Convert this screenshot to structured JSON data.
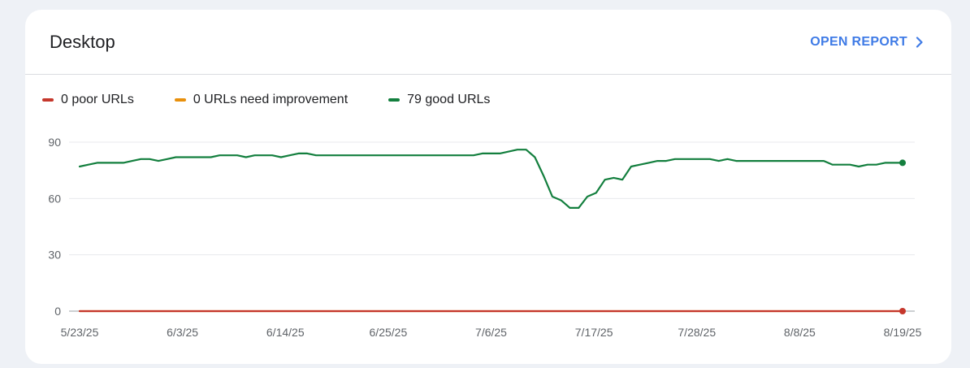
{
  "card": {
    "title": "Desktop",
    "open_report_label": "OPEN REPORT"
  },
  "legend": [
    {
      "label": "0 poor URLs",
      "color": "#c5372c"
    },
    {
      "label": "0 URLs need improvement",
      "color": "#e8900c"
    },
    {
      "label": "79 good URLs",
      "color": "#137f3e"
    }
  ],
  "chart_data": {
    "type": "line",
    "x_tick_labels": [
      "5/23/25",
      "6/3/25",
      "6/14/25",
      "6/25/25",
      "7/6/25",
      "7/17/25",
      "7/28/25",
      "8/8/25",
      "8/19/25"
    ],
    "yticks": [
      0,
      30,
      60,
      90
    ],
    "ylim": [
      0,
      90
    ],
    "x_range": [
      "5/23/25",
      "8/19/25"
    ],
    "grid": true,
    "legend_placement": "top-left",
    "series": [
      {
        "name": "poor URLs",
        "color": "#c5372c",
        "values": [
          0,
          0,
          0,
          0,
          0,
          0,
          0,
          0,
          0,
          0,
          0,
          0,
          0,
          0,
          0,
          0,
          0,
          0,
          0,
          0,
          0,
          0,
          0,
          0,
          0,
          0,
          0,
          0,
          0,
          0,
          0,
          0,
          0,
          0,
          0,
          0,
          0,
          0,
          0,
          0,
          0,
          0,
          0,
          0,
          0,
          0,
          0,
          0,
          0,
          0,
          0,
          0,
          0,
          0,
          0,
          0,
          0,
          0,
          0,
          0,
          0,
          0,
          0,
          0,
          0,
          0,
          0,
          0,
          0,
          0,
          0,
          0,
          0,
          0,
          0,
          0,
          0,
          0,
          0,
          0,
          0,
          0,
          0,
          0,
          0,
          0,
          0,
          0,
          0
        ]
      },
      {
        "name": "URLs need improvement",
        "color": "#e8900c",
        "values": [
          0,
          0,
          0,
          0,
          0,
          0,
          0,
          0,
          0,
          0,
          0,
          0,
          0,
          0,
          0,
          0,
          0,
          0,
          0,
          0,
          0,
          0,
          0,
          0,
          0,
          0,
          0,
          0,
          0,
          0,
          0,
          0,
          0,
          0,
          0,
          0,
          0,
          0,
          0,
          0,
          0,
          0,
          0,
          0,
          0,
          0,
          0,
          0,
          0,
          0,
          0,
          0,
          0,
          0,
          0,
          0,
          0,
          0,
          0,
          0,
          0,
          0,
          0,
          0,
          0,
          0,
          0,
          0,
          0,
          0,
          0,
          0,
          0,
          0,
          0,
          0,
          0,
          0,
          0,
          0,
          0,
          0,
          0,
          0,
          0,
          0,
          0,
          0,
          0
        ]
      },
      {
        "name": "good URLs",
        "color": "#137f3e",
        "values": [
          77,
          78,
          79,
          79,
          79,
          79,
          80,
          81,
          81,
          80,
          81,
          82,
          82,
          82,
          82,
          82,
          83,
          83,
          83,
          82,
          83,
          83,
          83,
          82,
          83,
          84,
          84,
          83,
          83,
          83,
          83,
          83,
          83,
          83,
          83,
          83,
          83,
          83,
          83,
          83,
          83,
          83,
          83,
          83,
          83,
          83,
          84,
          84,
          84,
          85,
          86,
          86,
          82,
          72,
          61,
          59,
          55,
          55,
          61,
          63,
          70,
          71,
          70,
          77,
          78,
          79,
          80,
          80,
          81,
          81,
          81,
          81,
          81,
          80,
          81,
          80,
          80,
          80,
          80,
          80,
          80,
          80,
          80,
          80,
          80,
          80,
          78,
          78,
          78,
          77,
          78,
          78,
          79,
          79,
          79
        ]
      }
    ]
  }
}
